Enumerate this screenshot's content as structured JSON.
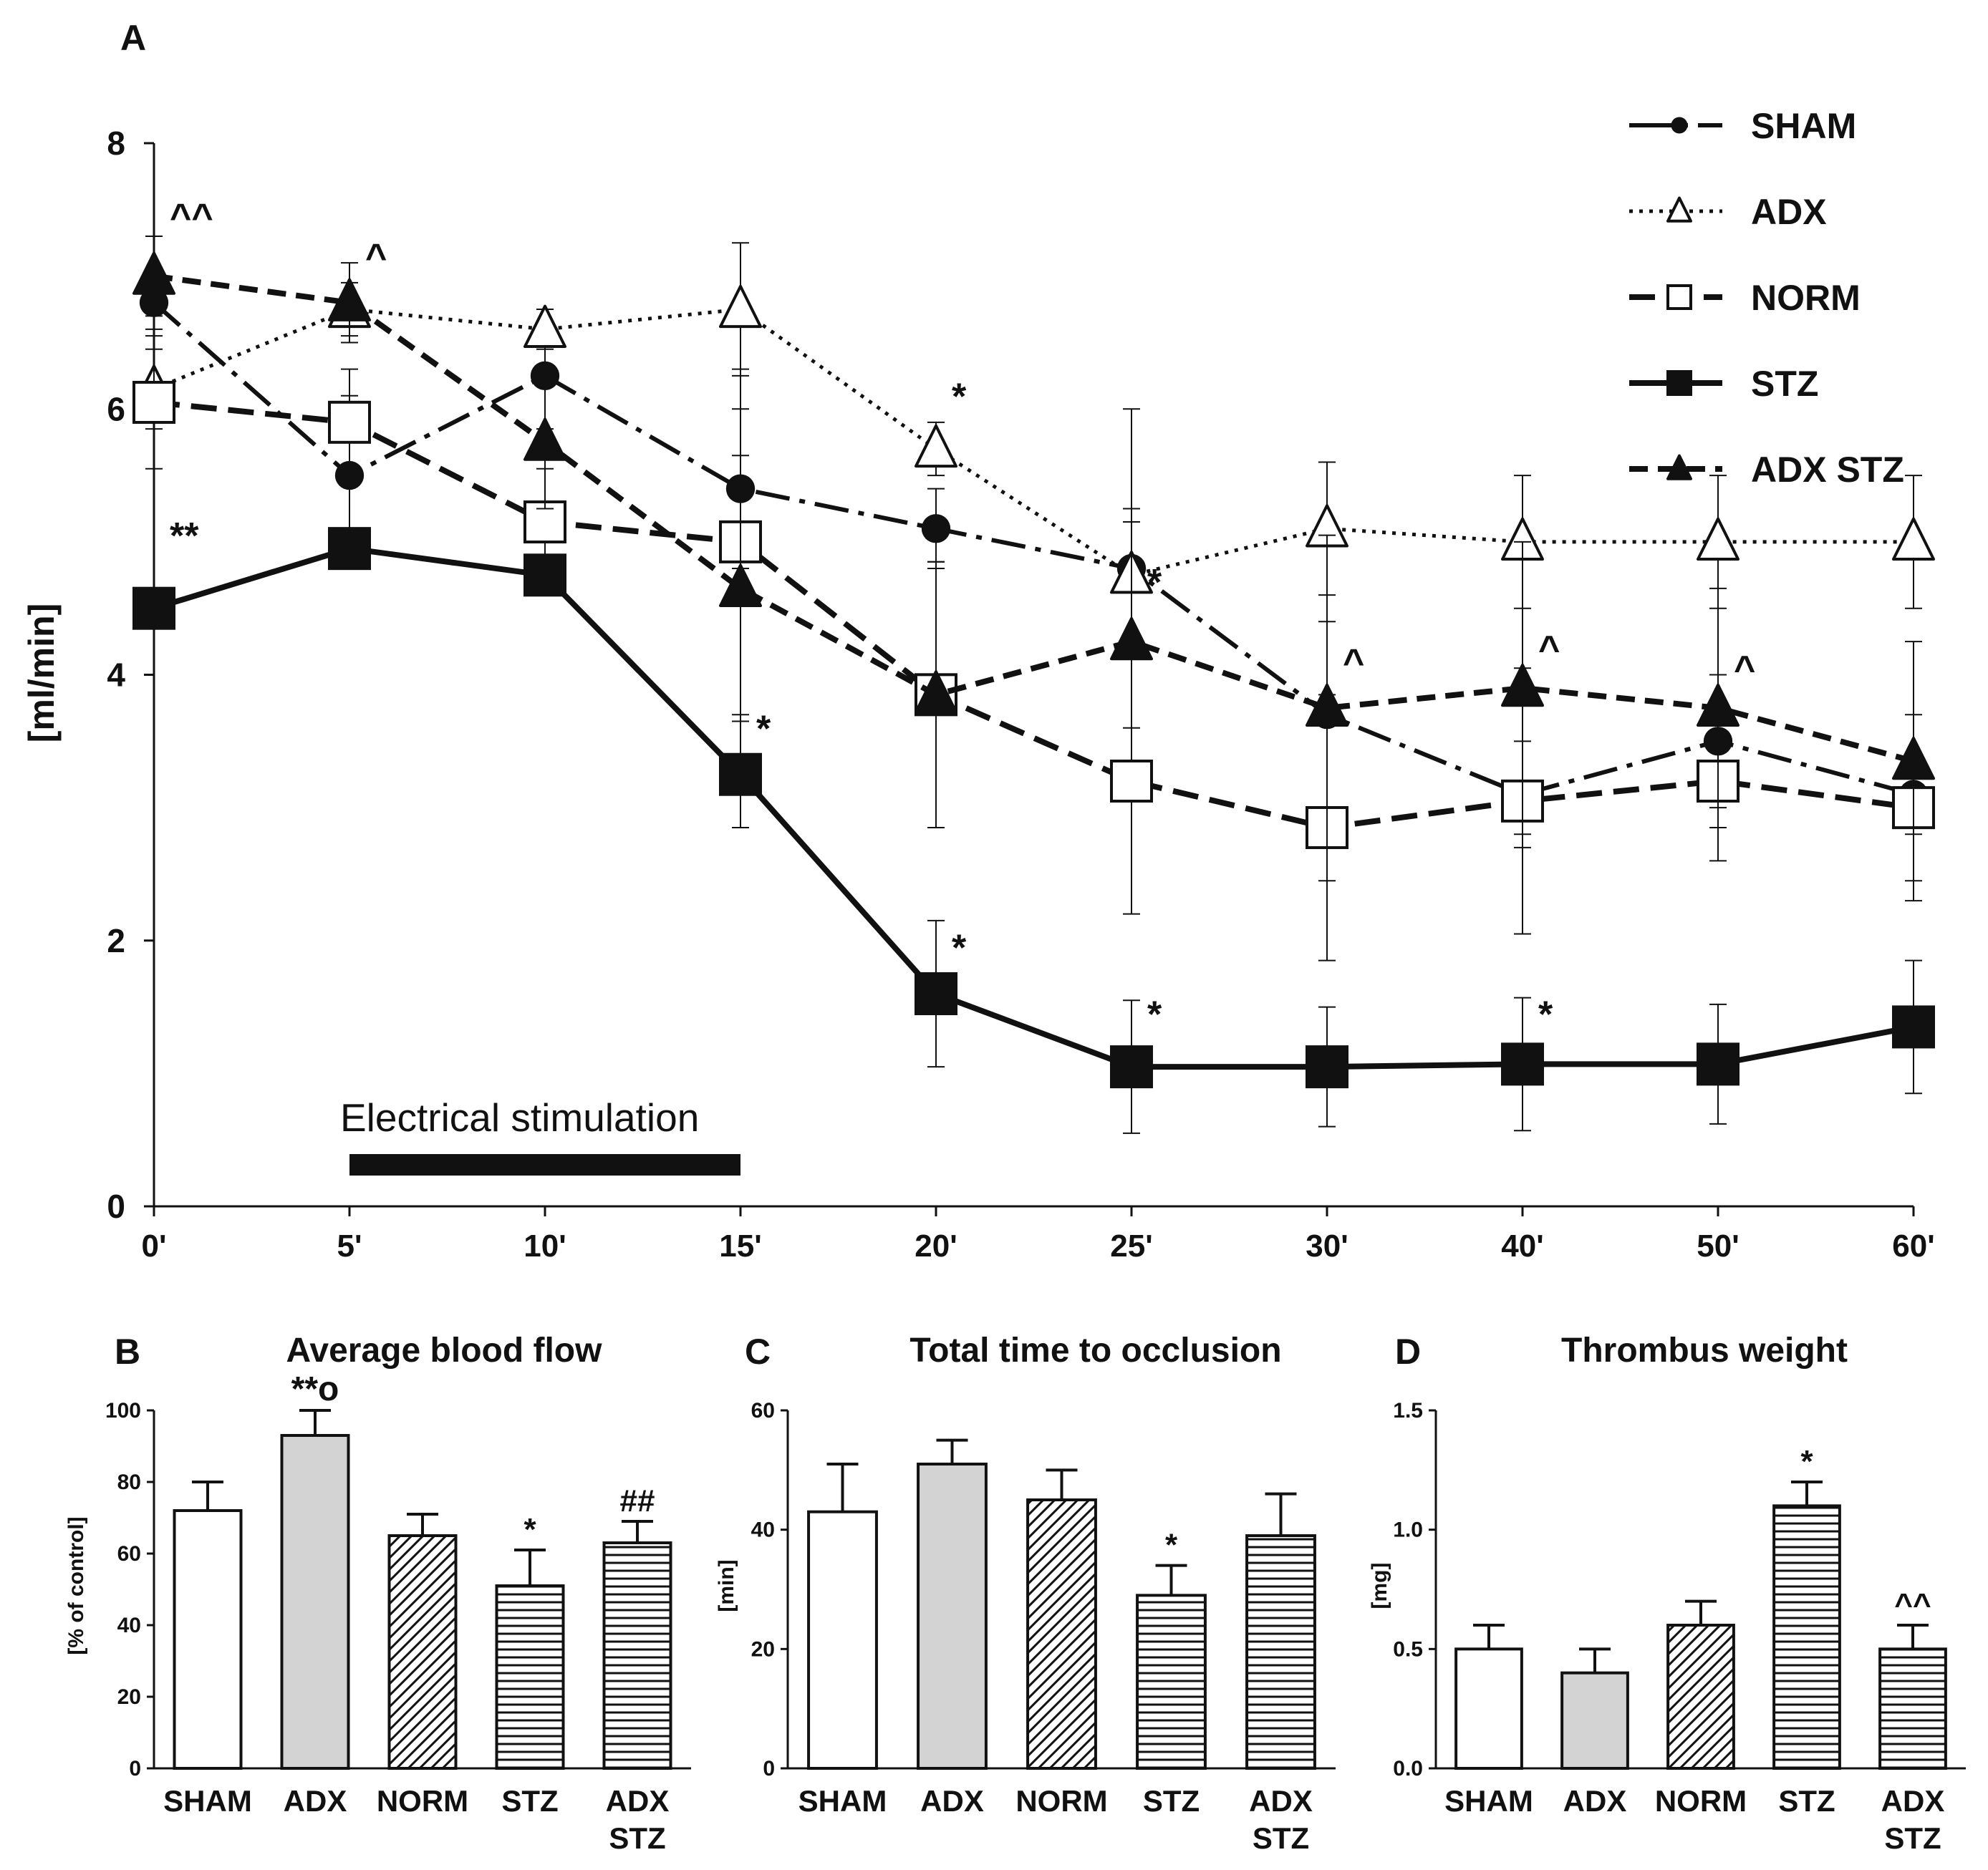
{
  "colors": {
    "ink": "#111111",
    "adx_fill": "#d3d3d3",
    "white": "#ffffff"
  },
  "panelA": {
    "panel_label": "A",
    "ylabel": "[ml/min]",
    "yticks": [
      "0",
      "2",
      "4",
      "6",
      "8"
    ],
    "xticks": [
      "0'",
      "5'",
      "10'",
      "15'",
      "20'",
      "25'",
      "30'",
      "40'",
      "50'",
      "60'"
    ],
    "stim_label": "Electrical stimulation",
    "legend": [
      "SHAM",
      "ADX",
      "NORM",
      "STZ",
      "ADX STZ"
    ],
    "annotations": [
      {
        "text": "^^",
        "x": "0'",
        "y": 7.35
      },
      {
        "text": "**",
        "x": "0'",
        "y": 4.95
      },
      {
        "text": "^",
        "x": "5'",
        "y": 7.05
      },
      {
        "text": "*",
        "x": "15'",
        "y": 3.5
      },
      {
        "text": "*",
        "x": "20'",
        "y": 6.0
      },
      {
        "text": "*",
        "x": "20'",
        "y": 1.85
      },
      {
        "text": "*",
        "x": "25'",
        "y": 1.35
      },
      {
        "text": "*",
        "x": "25'",
        "y": 4.6
      },
      {
        "text": "^",
        "x": "30'",
        "y": 4.0
      },
      {
        "text": "^",
        "x": "40'",
        "y": 4.1
      },
      {
        "text": "*",
        "x": "40'",
        "y": 1.35
      },
      {
        "text": "^",
        "x": "50'",
        "y": 3.95
      }
    ]
  },
  "panelB": {
    "panel_label": "B",
    "title": "Average blood flow",
    "ylabel": "[% of control]",
    "yticks": [
      "0",
      "20",
      "40",
      "60",
      "80",
      "100"
    ]
  },
  "panelC": {
    "panel_label": "C",
    "title": "Total time to occlusion",
    "ylabel": "[min]",
    "yticks": [
      "0",
      "20",
      "40",
      "60"
    ]
  },
  "panelD": {
    "panel_label": "D",
    "title": "Thrombus weight",
    "ylabel": "[mg]",
    "yticks": [
      "0.0",
      "0.5",
      "1.0",
      "1.5"
    ]
  },
  "bar_categories": [
    [
      "SHAM"
    ],
    [
      "ADX"
    ],
    [
      "NORM"
    ],
    [
      "STZ"
    ],
    [
      "ADX",
      "STZ"
    ]
  ],
  "chart_data": [
    {
      "type": "line",
      "ylabel": "[ml/min]",
      "ylim": [
        0,
        8
      ],
      "x": [
        "0'",
        "5'",
        "10'",
        "15'",
        "20'",
        "25'",
        "30'",
        "40'",
        "50'",
        "60'"
      ],
      "stimulation": {
        "label": "Electrical stimulation",
        "from": "5'",
        "to": "15'"
      },
      "series": [
        {
          "name": "SHAM",
          "values": [
            6.8,
            5.5,
            6.25,
            5.4,
            5.1,
            4.8,
            3.7,
            3.1,
            3.5,
            3.1
          ],
          "err": [
            0.2,
            0.6,
            0.4,
            0.6,
            0.3,
            1.2,
            0.7,
            0.4,
            0.5,
            0.3
          ]
        },
        {
          "name": "ADX",
          "values": [
            6.15,
            6.75,
            6.6,
            6.75,
            5.7,
            4.75,
            5.1,
            5.0,
            5.0,
            5.0
          ],
          "err": [
            0.3,
            0.2,
            0.15,
            0.5,
            0.2,
            0.5,
            0.5,
            0.5,
            0.5,
            0.5
          ]
        },
        {
          "name": "NORM",
          "values": [
            6.05,
            5.9,
            5.15,
            5.0,
            3.85,
            3.2,
            2.85,
            3.05,
            3.2,
            3.0
          ],
          "err": [
            0.5,
            0.4,
            0.4,
            1.3,
            1.0,
            1.0,
            1.0,
            1.0,
            0.6,
            0.7
          ]
        },
        {
          "name": "STZ",
          "values": [
            4.5,
            4.95,
            4.75,
            3.25,
            1.6,
            1.05,
            1.05,
            1.07,
            1.07,
            1.35
          ],
          "err": [
            0.0,
            0.0,
            0.0,
            0.4,
            0.55,
            0.5,
            0.45,
            0.5,
            0.45,
            0.5
          ]
        },
        {
          "name": "ADX STZ",
          "values": [
            7.0,
            6.8,
            5.75,
            4.65,
            3.85,
            4.25,
            3.75,
            3.9,
            3.75,
            3.35
          ],
          "err": [
            0.3,
            0.3,
            0.5,
            1.0,
            1.0,
            0.9,
            1.3,
            1.1,
            0.9,
            0.9
          ]
        }
      ]
    },
    {
      "type": "bar",
      "title": "Average blood flow",
      "ylabel": "[% of control]",
      "ylim": [
        0,
        100
      ],
      "categories": [
        "SHAM",
        "ADX",
        "NORM",
        "STZ",
        "ADX STZ"
      ],
      "values": [
        72,
        93,
        65,
        51,
        63
      ],
      "err": [
        8,
        7,
        6,
        10,
        6
      ],
      "annotations": [
        "",
        "**o",
        "",
        "*",
        "##"
      ]
    },
    {
      "type": "bar",
      "title": "Total time to occlusion",
      "ylabel": "[min]",
      "ylim": [
        0,
        60
      ],
      "categories": [
        "SHAM",
        "ADX",
        "NORM",
        "STZ",
        "ADX STZ"
      ],
      "values": [
        43,
        51,
        45,
        29,
        39
      ],
      "err": [
        8,
        4,
        5,
        5,
        7
      ],
      "annotations": [
        "",
        "",
        "",
        "*",
        ""
      ]
    },
    {
      "type": "bar",
      "title": "Thrombus weight",
      "ylabel": "[mg]",
      "ylim": [
        0,
        1.5
      ],
      "categories": [
        "SHAM",
        "ADX",
        "NORM",
        "STZ",
        "ADX STZ"
      ],
      "values": [
        0.5,
        0.4,
        0.6,
        1.1,
        0.5
      ],
      "err": [
        0.1,
        0.1,
        0.1,
        0.1,
        0.1
      ],
      "annotations": [
        "",
        "",
        "",
        "*",
        "^^"
      ]
    }
  ]
}
